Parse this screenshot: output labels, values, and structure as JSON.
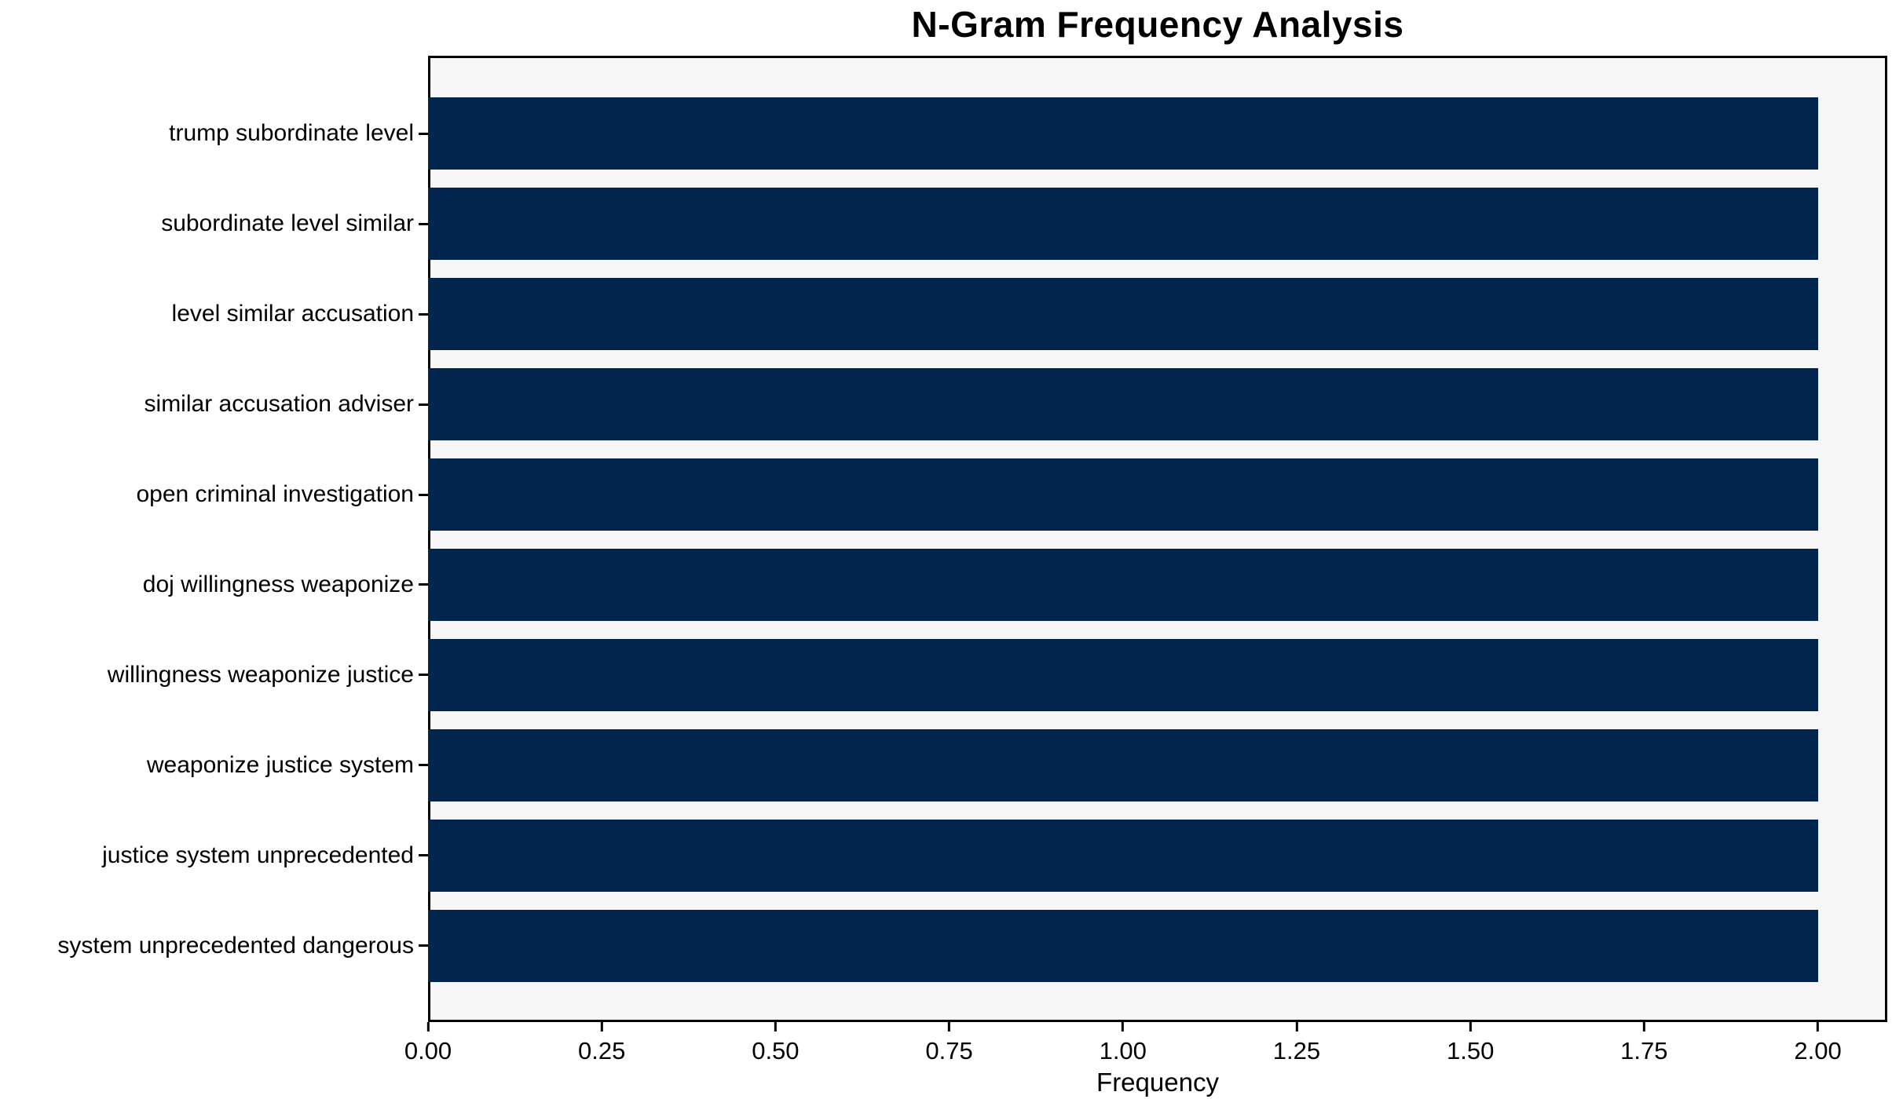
{
  "chart_data": {
    "type": "bar",
    "orientation": "horizontal",
    "title": "N-Gram Frequency Analysis",
    "xlabel": "Frequency",
    "ylabel": "",
    "categories": [
      "trump subordinate level",
      "subordinate level similar",
      "level similar accusation",
      "similar accusation adviser",
      "open criminal investigation",
      "doj willingness weaponize",
      "willingness weaponize justice",
      "weaponize justice system",
      "justice system unprecedented",
      "system unprecedented dangerous"
    ],
    "values": [
      2,
      2,
      2,
      2,
      2,
      2,
      2,
      2,
      2,
      2
    ],
    "xlim": [
      0,
      2.1
    ],
    "xtick_labels": [
      "0.00",
      "0.25",
      "0.50",
      "0.75",
      "1.00",
      "1.25",
      "1.50",
      "1.75",
      "2.00"
    ],
    "xtick_values": [
      0,
      0.25,
      0.5,
      0.75,
      1.0,
      1.25,
      1.5,
      1.75,
      2.0
    ],
    "bar_height_ratio": 0.8,
    "grid": false,
    "legend": "none",
    "colors": {
      "bar": "#02254e",
      "plot_background": "#f7f7f7",
      "figure_background": "#ffffff",
      "axis": "#000000",
      "text": "#000000"
    }
  }
}
